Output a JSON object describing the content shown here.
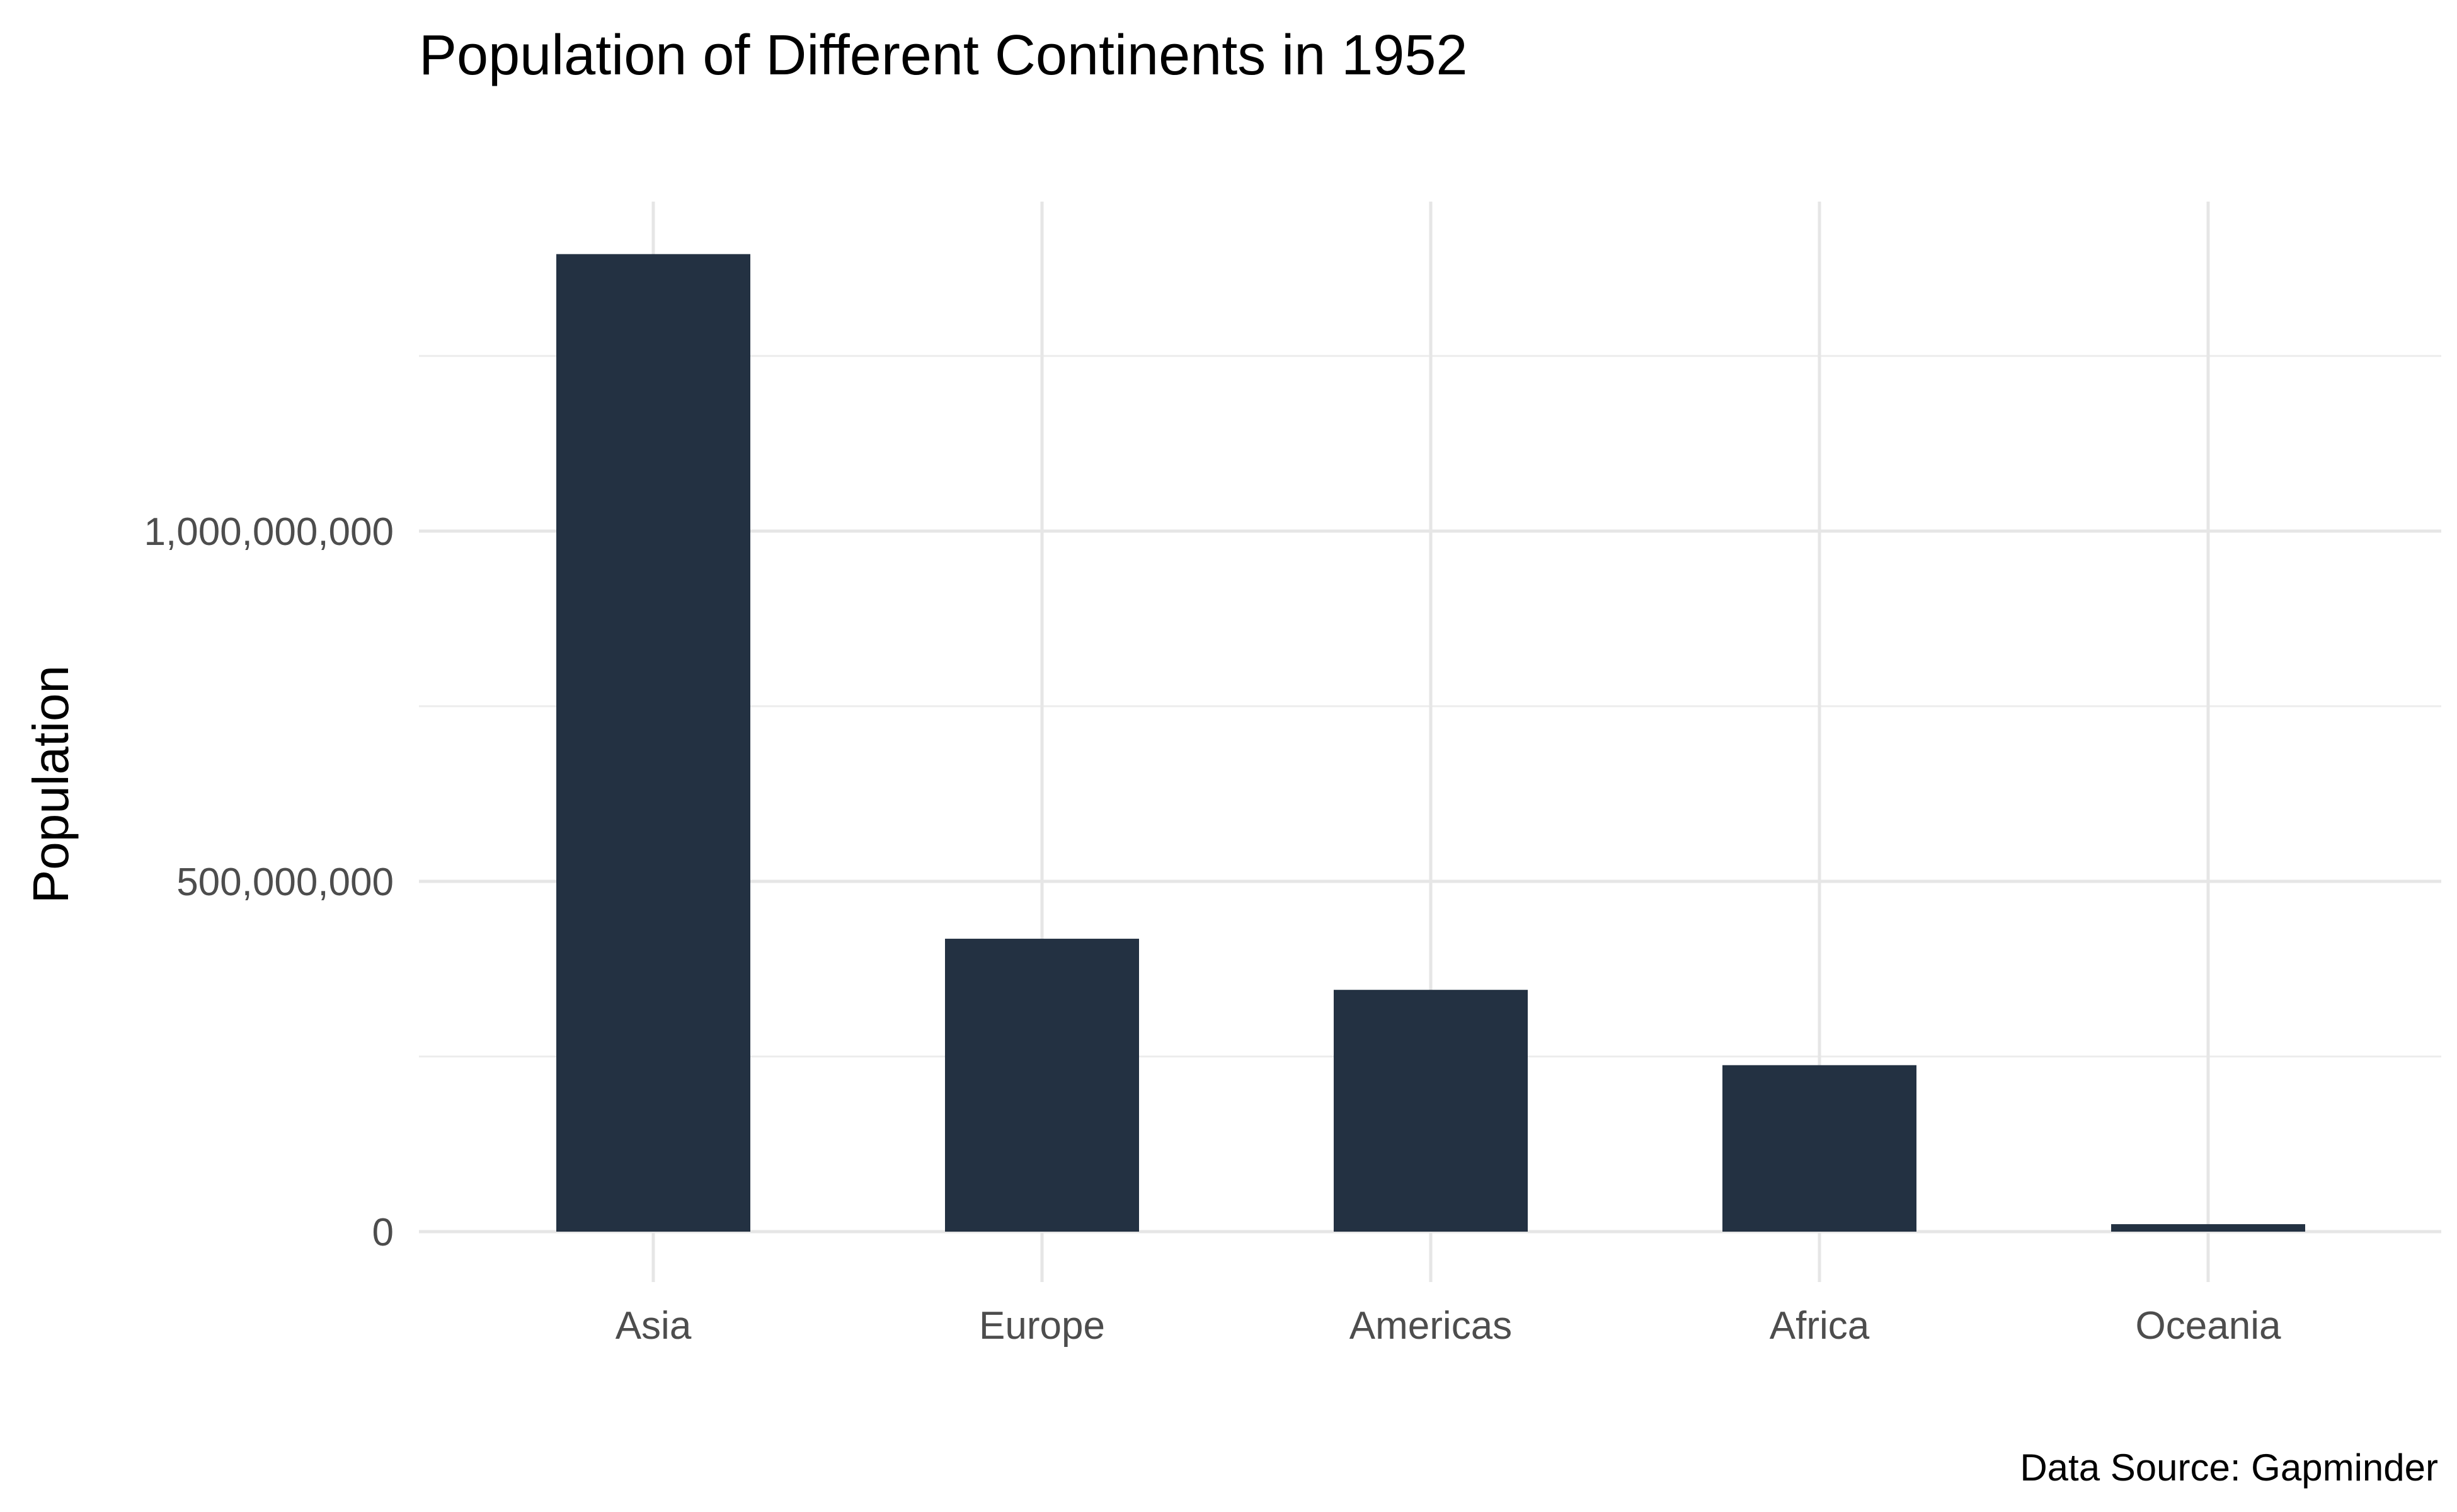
{
  "chart_data": {
    "type": "bar",
    "title": "Population of Different Continents in 1952",
    "caption": "Data Source: Gapminder",
    "xlabel": "",
    "ylabel": "Population",
    "categories": [
      "Asia",
      "Europe",
      "Americas",
      "Africa",
      "Oceania"
    ],
    "values": [
      1395357350,
      418120846,
      345152446,
      237640501,
      10686006
    ],
    "ylim": [
      0,
      1400000000
    ],
    "yticks": [
      0,
      500000000,
      1000000000
    ],
    "ytick_labels": [
      "0",
      "500,000,000",
      "1,000,000,000"
    ],
    "grid": true,
    "legend": "none",
    "bar_color": "#233142"
  }
}
